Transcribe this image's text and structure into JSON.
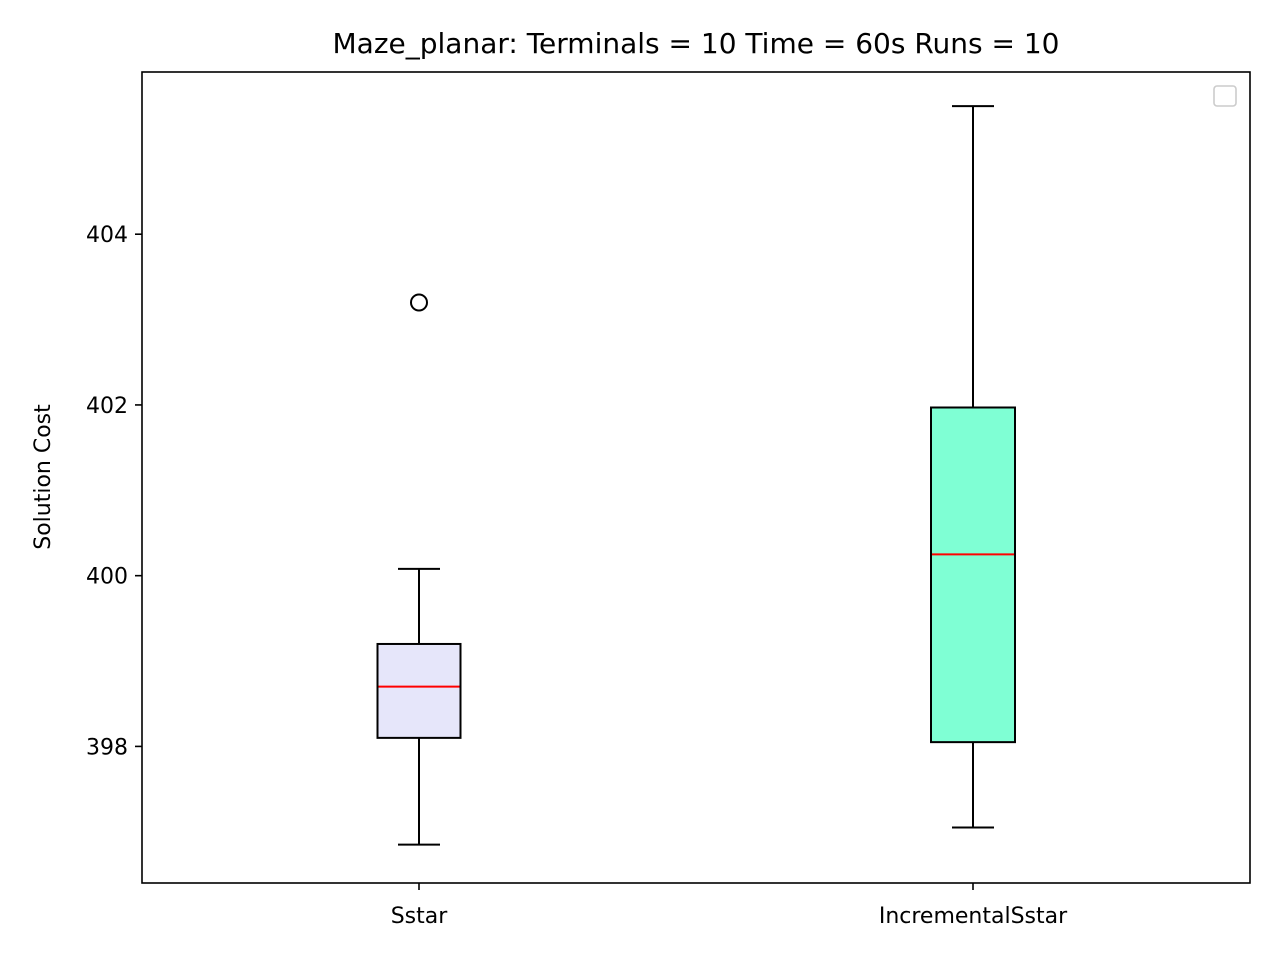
{
  "chart_data": {
    "type": "box",
    "title": "Maze_planar:  Terminals = 10  Time = 60s  Runs = 10",
    "xlabel": "",
    "ylabel": "Solution Cost",
    "categories": [
      "Sstar",
      "IncrementalSstar"
    ],
    "ylim": [
      396.4,
      405.9
    ],
    "yticks": [
      398,
      400,
      402,
      404
    ],
    "grid": false,
    "legend": "top-right",
    "boxes": [
      {
        "label": "Sstar",
        "whisker_low": 396.85,
        "q1": 398.1,
        "median": 398.7,
        "q3": 399.2,
        "whisker_high": 400.08,
        "outliers": [
          403.2
        ],
        "fill": "#e6e6fa"
      },
      {
        "label": "IncrementalSstar",
        "whisker_low": 397.05,
        "q1": 398.05,
        "median": 400.25,
        "q3": 401.97,
        "whisker_high": 405.5,
        "outliers": [],
        "fill": "#7fffd4"
      }
    ],
    "median_color": "#ff0000"
  }
}
